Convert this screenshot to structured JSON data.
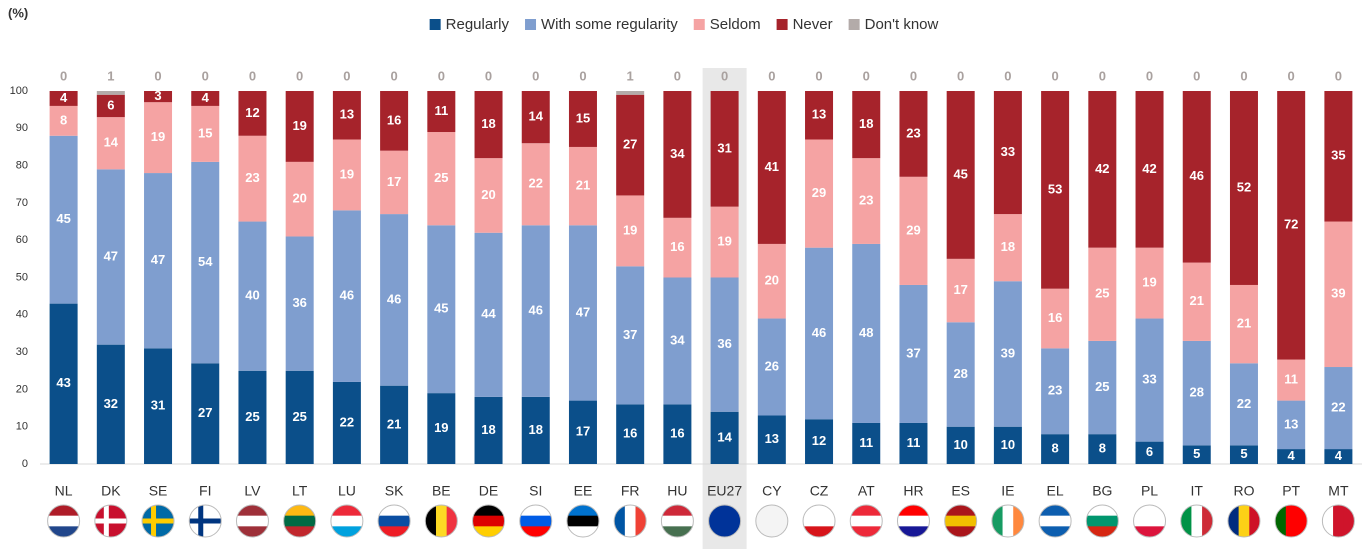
{
  "chart_data": {
    "type": "stacked_bar",
    "y_label": "(%)",
    "categories": [
      "NL",
      "DK",
      "SE",
      "FI",
      "LV",
      "LT",
      "LU",
      "SK",
      "BE",
      "DE",
      "SI",
      "EE",
      "FR",
      "HU",
      "EU27",
      "CY",
      "CZ",
      "AT",
      "HR",
      "ES",
      "IE",
      "EL",
      "BG",
      "PL",
      "IT",
      "RO",
      "PT",
      "MT"
    ],
    "highlight": "EU27",
    "series": [
      {
        "name": "Regularly",
        "color": "#0b4f8a",
        "values": [
          43,
          32,
          31,
          27,
          25,
          25,
          22,
          21,
          19,
          18,
          18,
          17,
          16,
          16,
          14,
          13,
          12,
          11,
          11,
          10,
          10,
          8,
          8,
          6,
          5,
          5,
          4,
          4
        ]
      },
      {
        "name": "With some regularity",
        "color": "#7f9ecf",
        "values": [
          45,
          47,
          47,
          54,
          40,
          36,
          46,
          46,
          45,
          44,
          46,
          47,
          37,
          34,
          36,
          26,
          46,
          48,
          37,
          28,
          39,
          23,
          25,
          33,
          28,
          22,
          13,
          22
        ]
      },
      {
        "name": "Seldom",
        "color": "#f5a3a3",
        "values": [
          8,
          14,
          19,
          15,
          23,
          20,
          19,
          17,
          25,
          20,
          22,
          21,
          19,
          16,
          19,
          20,
          29,
          23,
          29,
          17,
          18,
          16,
          25,
          19,
          21,
          21,
          11,
          39
        ]
      },
      {
        "name": "Never",
        "color": "#a6232b",
        "values": [
          4,
          6,
          3,
          4,
          12,
          19,
          13,
          16,
          11,
          18,
          14,
          15,
          27,
          34,
          31,
          41,
          13,
          18,
          23,
          45,
          33,
          53,
          42,
          42,
          46,
          52,
          72,
          35
        ]
      },
      {
        "name": "Don't know",
        "color": "#b3aba9",
        "label_position": "top",
        "values": [
          0,
          1,
          0,
          0,
          0,
          0,
          0,
          0,
          0,
          0,
          0,
          0,
          1,
          0,
          0,
          0,
          0,
          0,
          0,
          0,
          0,
          0,
          0,
          0,
          0,
          0,
          0,
          0
        ]
      }
    ],
    "ylim": [
      0,
      100
    ],
    "yticks": [
      0,
      10,
      20,
      30,
      40,
      50,
      60,
      70,
      80,
      90,
      100
    ],
    "grid": false
  }
}
